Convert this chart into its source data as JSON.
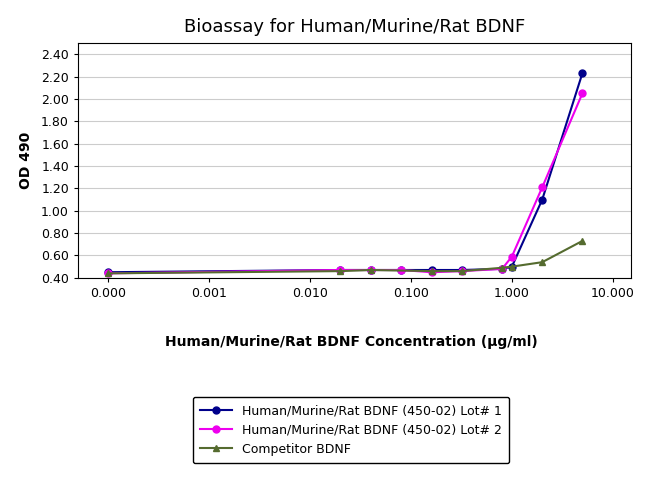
{
  "title": "Bioassay for Human/Murine/Rat BDNF",
  "xlabel": "Human/Murine/Rat BDNF Concentration (μg/ml)",
  "ylabel": "OD 490",
  "background_color": "#ffffff",
  "plot_bg_color": "#ffffff",
  "grid_color": "#cccccc",
  "ylim": [
    0.4,
    2.5
  ],
  "yticks": [
    0.4,
    0.6,
    0.8,
    1.0,
    1.2,
    1.4,
    1.6,
    1.8,
    2.0,
    2.2,
    2.4
  ],
  "xtick_labels": [
    "0.000",
    "0.001",
    "0.010",
    "0.100",
    "1.000",
    "10.000"
  ],
  "xtick_positions": [
    0.0001,
    0.001,
    0.01,
    0.1,
    1.0,
    10.0
  ],
  "xlim": [
    5e-05,
    15.0
  ],
  "series": [
    {
      "label": "Human/Murine/Rat BDNF (450-02) Lot# 1",
      "color": "#00008B",
      "marker": "o",
      "markersize": 5,
      "linewidth": 1.5,
      "x": [
        0.0001,
        0.02,
        0.04,
        0.08,
        0.16,
        0.32,
        0.8,
        1.0,
        2.0,
        5.0
      ],
      "y": [
        0.45,
        0.47,
        0.47,
        0.47,
        0.47,
        0.47,
        0.48,
        0.5,
        1.1,
        2.23
      ]
    },
    {
      "label": "Human/Murine/Rat BDNF (450-02) Lot# 2",
      "color": "#EE00EE",
      "marker": "o",
      "markersize": 5,
      "linewidth": 1.5,
      "x": [
        0.0001,
        0.02,
        0.04,
        0.08,
        0.16,
        0.32,
        0.8,
        1.0,
        2.0,
        5.0
      ],
      "y": [
        0.44,
        0.47,
        0.47,
        0.47,
        0.45,
        0.46,
        0.48,
        0.59,
        1.21,
        2.05
      ]
    },
    {
      "label": "Competitor BDNF",
      "color": "#556B2F",
      "marker": "^",
      "markersize": 5,
      "linewidth": 1.5,
      "x": [
        0.0001,
        0.02,
        0.04,
        0.16,
        0.32,
        0.8,
        1.0,
        2.0,
        5.0
      ],
      "y": [
        0.44,
        0.46,
        0.47,
        0.46,
        0.46,
        0.49,
        0.5,
        0.54,
        0.73
      ]
    }
  ],
  "title_fontsize": 13,
  "axis_label_fontsize": 10,
  "tick_fontsize": 9,
  "legend_fontsize": 9
}
